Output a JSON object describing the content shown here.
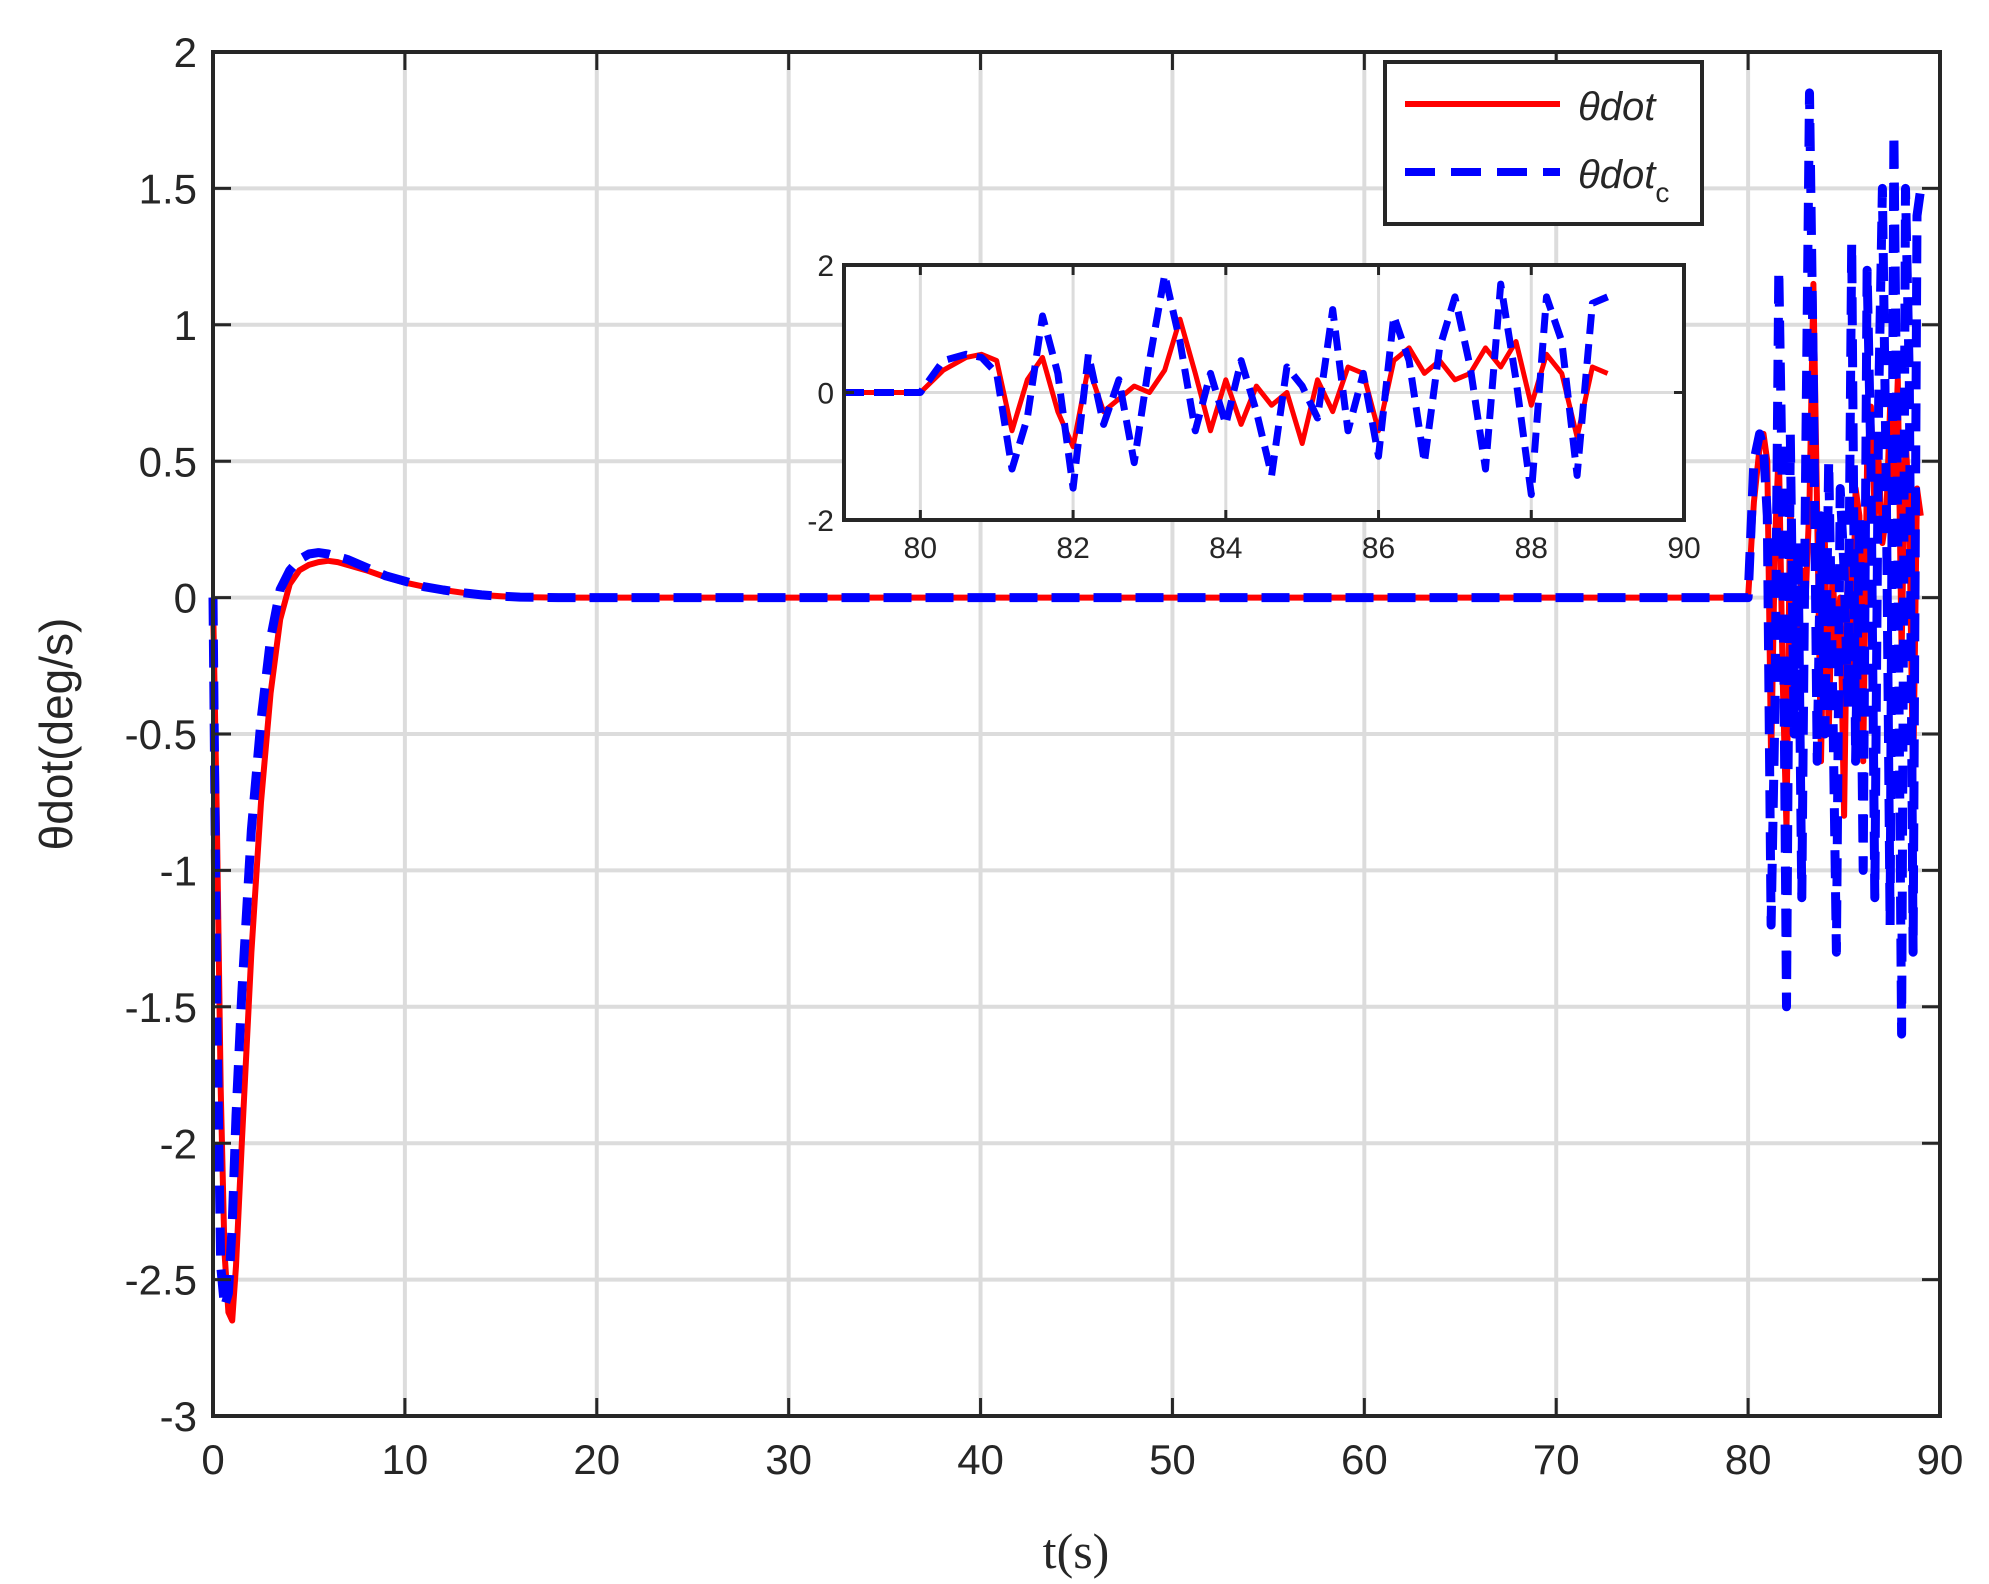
{
  "chart_data": [
    {
      "id": "main",
      "type": "line",
      "xlabel": "t(s)",
      "ylabel": "θdot(deg/s)",
      "xlim": [
        0,
        90
      ],
      "ylim": [
        -3,
        2
      ],
      "xticks": [
        0,
        10,
        20,
        30,
        40,
        50,
        60,
        70,
        80,
        90
      ],
      "yticks": [
        -3,
        -2.5,
        -2,
        -1.5,
        -1,
        -0.5,
        0,
        0.5,
        1,
        1.5,
        2
      ],
      "xtick_labels": [
        "0",
        "10",
        "20",
        "30",
        "40",
        "50",
        "60",
        "70",
        "80",
        "90"
      ],
      "ytick_labels": [
        "-3",
        "-2.5",
        "-2",
        "-1.5",
        "-1",
        "-0.5",
        "0",
        "0.5",
        "1",
        "1.5",
        "2"
      ],
      "grid": true,
      "legend_position": "top-right",
      "series": [
        {
          "name": "θdot",
          "legend_main": "θdot",
          "legend_sub": "",
          "color": "#ff0000",
          "style": "solid",
          "x": [
            0,
            0.2,
            0.4,
            0.6,
            0.8,
            1.0,
            1.2,
            1.5,
            2.0,
            2.5,
            3.0,
            3.5,
            4.0,
            4.5,
            5.0,
            5.5,
            6.0,
            6.5,
            7.0,
            8.0,
            9.0,
            10.0,
            11.0,
            12.0,
            13.0,
            14.0,
            15.0,
            16.0,
            18.0,
            20.0,
            40.0,
            60.0,
            80.0,
            80.3,
            80.6,
            80.8,
            81.0,
            81.2,
            81.4,
            81.6,
            81.8,
            82.0,
            82.2,
            82.4,
            82.6,
            82.8,
            83.0,
            83.2,
            83.4,
            83.6,
            83.8,
            84.0,
            84.2,
            84.4,
            84.6,
            84.8,
            85.0,
            85.2,
            85.4,
            85.6,
            85.8,
            86.0,
            86.2,
            86.4,
            86.6,
            86.8,
            87.0,
            87.2,
            87.4,
            87.6,
            87.8,
            88.0,
            88.2,
            88.4,
            88.6,
            88.8,
            89.0
          ],
          "y": [
            0,
            -0.8,
            -1.8,
            -2.4,
            -2.62,
            -2.65,
            -2.45,
            -2.0,
            -1.3,
            -0.75,
            -0.35,
            -0.08,
            0.05,
            0.1,
            0.12,
            0.13,
            0.135,
            0.13,
            0.12,
            0.1,
            0.075,
            0.055,
            0.04,
            0.028,
            0.018,
            0.01,
            0.005,
            0.002,
            0.0,
            0.0,
            0.0,
            0.0,
            0.0,
            0.35,
            0.55,
            0.6,
            0.5,
            -0.6,
            0.2,
            0.55,
            -0.3,
            -0.85,
            0.4,
            -0.3,
            -0.1,
            0.1,
            0.0,
            0.35,
            1.15,
            0.3,
            -0.6,
            0.2,
            -0.5,
            0.1,
            -0.2,
            0.0,
            -0.8,
            0.2,
            -0.3,
            0.4,
            0.3,
            -0.6,
            0.5,
            0.7,
            0.3,
            0.5,
            0.2,
            0.3,
            0.7,
            0.4,
            0.8,
            -0.2,
            0.6,
            0.3,
            -0.7,
            0.4,
            0.3
          ]
        },
        {
          "name": "θdot_c",
          "legend_main": "θdot",
          "legend_sub": "c",
          "color": "#0000ff",
          "style": "dashed",
          "x": [
            0,
            0.2,
            0.4,
            0.6,
            0.8,
            1.0,
            1.2,
            1.5,
            2.0,
            2.5,
            3.0,
            3.5,
            4.0,
            4.5,
            5.0,
            5.5,
            6.0,
            6.5,
            7.0,
            8.0,
            9.0,
            10.0,
            11.0,
            12.0,
            13.0,
            14.0,
            15.0,
            16.0,
            18.0,
            20.0,
            40.0,
            60.0,
            80.0,
            80.3,
            80.6,
            80.8,
            81.0,
            81.2,
            81.4,
            81.6,
            81.8,
            82.0,
            82.2,
            82.4,
            82.6,
            82.8,
            83.0,
            83.2,
            83.4,
            83.6,
            83.8,
            84.0,
            84.2,
            84.4,
            84.6,
            84.8,
            85.0,
            85.2,
            85.4,
            85.6,
            85.8,
            86.0,
            86.2,
            86.4,
            86.6,
            86.8,
            87.0,
            87.2,
            87.4,
            87.6,
            87.8,
            88.0,
            88.2,
            88.4,
            88.6,
            88.8,
            89.0
          ],
          "y": [
            0,
            -1.5,
            -2.45,
            -2.6,
            -2.55,
            -2.3,
            -1.9,
            -1.45,
            -0.85,
            -0.45,
            -0.15,
            0.03,
            0.1,
            0.14,
            0.16,
            0.165,
            0.16,
            0.15,
            0.14,
            0.11,
            0.08,
            0.06,
            0.04,
            0.028,
            0.018,
            0.01,
            0.005,
            0.002,
            0.0,
            0.0,
            0.0,
            0.0,
            0.0,
            0.5,
            0.6,
            0.55,
            0.3,
            -1.2,
            -0.4,
            1.2,
            0.3,
            -1.5,
            0.6,
            -0.5,
            0.2,
            -1.1,
            0.5,
            1.85,
            0.8,
            -0.6,
            0.3,
            -0.5,
            0.5,
            -0.3,
            -1.3,
            0.4,
            0.1,
            -0.4,
            1.3,
            -0.6,
            0.3,
            -1.0,
            1.2,
            0.5,
            -1.1,
            0.7,
            1.5,
            0.4,
            -1.2,
            1.7,
            0.2,
            -1.6,
            1.5,
            0.8,
            -1.3,
            1.4,
            1.5
          ]
        }
      ]
    },
    {
      "id": "inset",
      "type": "line",
      "xlim": [
        79,
        90
      ],
      "ylim": [
        -2,
        2
      ],
      "xticks": [
        80,
        82,
        84,
        86,
        88,
        90
      ],
      "yticks": [
        -2,
        0,
        2
      ],
      "xtick_labels": [
        "80",
        "82",
        "84",
        "86",
        "88",
        "90"
      ],
      "ytick_labels": [
        "-2",
        "0",
        "2"
      ],
      "grid": true,
      "series": [
        {
          "name": "θdot",
          "color": "#ff0000",
          "style": "solid",
          "x": [
            79,
            80,
            80.3,
            80.6,
            80.8,
            81.0,
            81.2,
            81.4,
            81.6,
            81.8,
            82.0,
            82.2,
            82.4,
            82.6,
            82.8,
            83.0,
            83.2,
            83.4,
            83.6,
            83.8,
            84.0,
            84.2,
            84.4,
            84.6,
            84.8,
            85.0,
            85.2,
            85.4,
            85.6,
            85.8,
            86.0,
            86.2,
            86.4,
            86.6,
            86.8,
            87.0,
            87.2,
            87.4,
            87.6,
            87.8,
            88.0,
            88.2,
            88.4,
            88.6,
            88.8,
            89.0
          ],
          "y": [
            0,
            0,
            0.35,
            0.55,
            0.6,
            0.5,
            -0.6,
            0.2,
            0.55,
            -0.3,
            -0.85,
            0.4,
            -0.3,
            -0.1,
            0.1,
            0.0,
            0.35,
            1.15,
            0.3,
            -0.6,
            0.2,
            -0.5,
            0.1,
            -0.2,
            0.0,
            -0.8,
            0.2,
            -0.3,
            0.4,
            0.3,
            -0.6,
            0.5,
            0.7,
            0.3,
            0.5,
            0.2,
            0.3,
            0.7,
            0.4,
            0.8,
            -0.2,
            0.6,
            0.3,
            -0.7,
            0.4,
            0.3
          ]
        },
        {
          "name": "θdot_c",
          "color": "#0000ff",
          "style": "dashed",
          "x": [
            79,
            80,
            80.3,
            80.6,
            80.8,
            81.0,
            81.2,
            81.4,
            81.6,
            81.8,
            82.0,
            82.2,
            82.4,
            82.6,
            82.8,
            83.0,
            83.2,
            83.4,
            83.6,
            83.8,
            84.0,
            84.2,
            84.4,
            84.6,
            84.8,
            85.0,
            85.2,
            85.4,
            85.6,
            85.8,
            86.0,
            86.2,
            86.4,
            86.6,
            86.8,
            87.0,
            87.2,
            87.4,
            87.6,
            87.8,
            88.0,
            88.2,
            88.4,
            88.6,
            88.8,
            89.0
          ],
          "y": [
            0,
            0,
            0.5,
            0.6,
            0.55,
            0.3,
            -1.2,
            -0.4,
            1.2,
            0.3,
            -1.5,
            0.6,
            -0.5,
            0.2,
            -1.1,
            0.5,
            1.85,
            0.8,
            -0.6,
            0.3,
            -0.5,
            0.5,
            -0.3,
            -1.3,
            0.4,
            0.1,
            -0.4,
            1.3,
            -0.6,
            0.3,
            -1.0,
            1.2,
            0.5,
            -1.1,
            0.7,
            1.5,
            0.4,
            -1.2,
            1.7,
            0.2,
            -1.6,
            1.5,
            0.8,
            -1.3,
            1.4,
            1.5
          ]
        }
      ]
    }
  ]
}
